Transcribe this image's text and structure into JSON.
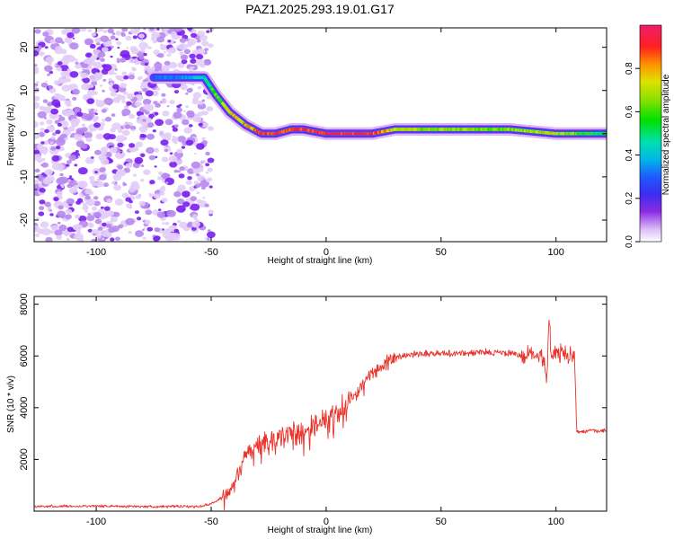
{
  "title": "PAZ1.2025.293.19.01.G17",
  "colors": {
    "snr_line": "#e8322a",
    "ridge_low": "#7a1ff0",
    "ridge_mid": "#00c8d8",
    "ridge_high": "#ee2222",
    "noise": "#7a1ff0"
  },
  "chart_data": [
    {
      "type": "heatmap",
      "xlabel": "Height of straight line (km)",
      "ylabel": "Frequency (Hz)",
      "xlim": [
        -127,
        122
      ],
      "ylim": [
        -25,
        24.5
      ],
      "xticks": [
        -100,
        -50,
        0,
        50,
        100
      ],
      "yticks": [
        -20,
        -10,
        0,
        10,
        20
      ],
      "xtick_labels": [
        "-100",
        "-50",
        "0",
        "50",
        "100"
      ],
      "ytick_labels": [
        "-20",
        "-10",
        "0",
        "10",
        "20"
      ],
      "noise_region_x": [
        -127,
        -50
      ],
      "ridge": {
        "x": [
          -75,
          -60,
          -53,
          -48,
          -42,
          -35,
          -28,
          -22,
          -15,
          -10,
          0,
          10,
          20,
          30,
          50,
          80,
          100,
          122
        ],
        "freq": [
          13,
          13,
          13,
          9,
          5,
          2,
          0,
          0,
          1,
          1,
          0,
          0,
          0,
          1,
          1,
          1,
          0,
          0
        ],
        "amplitude": [
          0.3,
          0.35,
          0.45,
          0.6,
          0.7,
          0.8,
          0.9,
          0.95,
          0.9,
          0.95,
          0.95,
          0.95,
          0.95,
          0.7,
          0.65,
          0.65,
          0.7,
          0.5
        ]
      },
      "colorbar": {
        "label": "Normalized spectral amplitude",
        "ticks": [
          0.0,
          0.2,
          0.4,
          0.6,
          0.8
        ],
        "tick_labels": [
          "0.0",
          "0.2",
          "0.4",
          "0.6",
          "0.8"
        ],
        "range": [
          0,
          1
        ]
      },
      "grid": false
    },
    {
      "type": "line",
      "xlabel": "Height of straight line (km)",
      "ylabel": "SNR (10 * v/v)",
      "xlim": [
        -127,
        122
      ],
      "ylim": [
        0,
        8300
      ],
      "xticks": [
        -100,
        -50,
        0,
        50,
        100
      ],
      "yticks": [
        2000,
        4000,
        6000,
        8000
      ],
      "xtick_labels": [
        "-100",
        "-50",
        "0",
        "50",
        "100"
      ],
      "ytick_labels": [
        "2000",
        "4000",
        "6000",
        "8000"
      ],
      "series": [
        {
          "x": [
            -127,
            -100,
            -80,
            -55,
            -50,
            -45,
            -42,
            -40,
            -35,
            -30,
            -25,
            -20,
            -15,
            -10,
            -5,
            0,
            5,
            10,
            15,
            20,
            25,
            30,
            35,
            40,
            50,
            60,
            70,
            80,
            85,
            90,
            93,
            95,
            96,
            97,
            98,
            100,
            105,
            108,
            109,
            110,
            115,
            122
          ],
          "y": [
            180,
            200,
            180,
            180,
            280,
            550,
            750,
            1000,
            2200,
            2500,
            2700,
            2900,
            3000,
            3100,
            3300,
            3500,
            3800,
            4300,
            4800,
            5300,
            5700,
            5900,
            6050,
            6100,
            6100,
            6100,
            6150,
            6100,
            6000,
            6050,
            6100,
            5800,
            5000,
            7600,
            6000,
            6100,
            6050,
            6150,
            3100,
            3050,
            3100,
            3100
          ]
        }
      ],
      "grid": false
    }
  ]
}
